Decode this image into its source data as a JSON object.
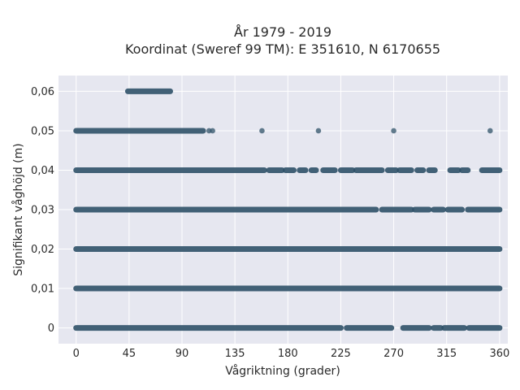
{
  "chart_data": {
    "type": "scatter",
    "title_lines": [
      "År 1979 - 2019",
      "Koordinat (Sweref 99 TM): E 351610, N 6170655"
    ],
    "xlabel": "Vågriktning (grader)",
    "ylabel": "Signifikant våghöjd (m)",
    "xlim": [
      -15,
      367
    ],
    "ylim": [
      -0.004,
      0.064
    ],
    "x_ticks": [
      0,
      45,
      90,
      135,
      180,
      225,
      270,
      315,
      360
    ],
    "x_tick_labels": [
      "0",
      "45",
      "90",
      "135",
      "180",
      "225",
      "270",
      "315",
      "360"
    ],
    "y_ticks": [
      0,
      0.01,
      0.02,
      0.03,
      0.04,
      0.05,
      0.06
    ],
    "y_tick_labels": [
      "0",
      "0,01",
      "0,02",
      "0,03",
      "0,04",
      "0,05",
      "0,06"
    ],
    "grid": true,
    "colors": {
      "background": "#e6e7f0",
      "grid": "#ffffff",
      "point": "#2f5168"
    },
    "bands": [
      {
        "y": 0,
        "segments": [
          [
            0,
            225
          ],
          [
            230,
            268
          ],
          [
            278,
            300
          ],
          [
            304,
            310
          ],
          [
            313,
            330
          ],
          [
            334,
            360
          ]
        ]
      },
      {
        "y": 0.01,
        "segments": [
          [
            0,
            360
          ]
        ]
      },
      {
        "y": 0.02,
        "segments": [
          [
            0,
            360
          ]
        ]
      },
      {
        "y": 0.03,
        "segments": [
          [
            0,
            255
          ],
          [
            260,
            285
          ],
          [
            288,
            300
          ],
          [
            304,
            312
          ],
          [
            316,
            328
          ],
          [
            333,
            360
          ]
        ]
      },
      {
        "y": 0.04,
        "segments": [
          [
            0,
            160
          ],
          [
            164,
            175
          ],
          [
            178,
            185
          ],
          [
            190,
            195
          ],
          [
            200,
            204
          ],
          [
            210,
            220
          ],
          [
            225,
            235
          ],
          [
            238,
            260
          ],
          [
            265,
            272
          ],
          [
            275,
            285
          ],
          [
            290,
            295
          ],
          [
            300,
            305
          ],
          [
            318,
            325
          ],
          [
            328,
            333
          ],
          [
            345,
            360
          ]
        ]
      },
      {
        "y": 0.05,
        "segments": [
          [
            0,
            108
          ]
        ]
      },
      {
        "y": 0.06,
        "segments": [
          [
            44,
            80
          ]
        ]
      }
    ],
    "points": [
      {
        "x": 113,
        "y": 0.05
      },
      {
        "x": 116,
        "y": 0.05
      },
      {
        "x": 158,
        "y": 0.05
      },
      {
        "x": 206,
        "y": 0.05
      },
      {
        "x": 270,
        "y": 0.05
      },
      {
        "x": 352,
        "y": 0.05
      }
    ]
  }
}
